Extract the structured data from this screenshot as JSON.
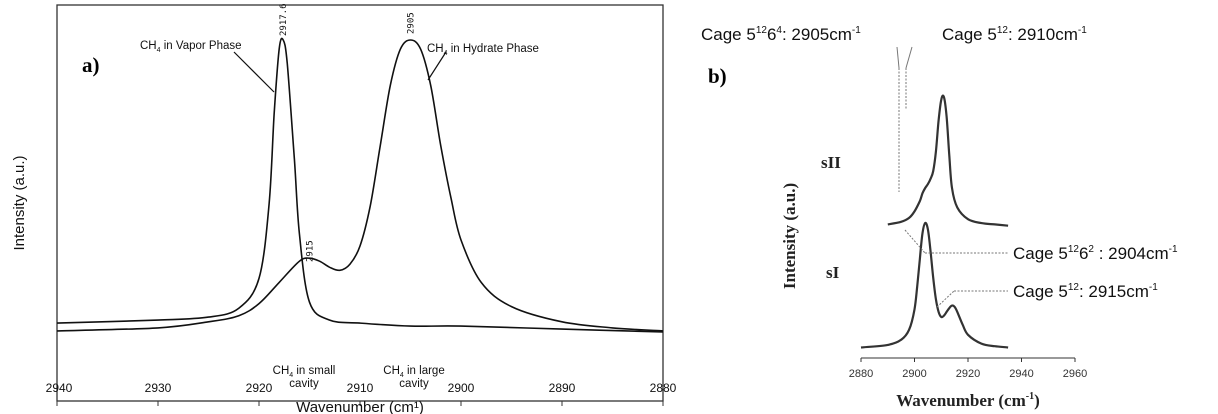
{
  "chart_data": [
    {
      "panel_label": "a)",
      "type": "line",
      "xlabel": "Wavenumber (cm¹)",
      "ylabel": "Intensity (a.u.)",
      "xlim": [
        2940,
        2880
      ],
      "x_reversed": true,
      "x_ticks": [
        "2940",
        "2930",
        "2920",
        "2910",
        "2900",
        "2890",
        "2880"
      ],
      "grid": false,
      "series": [
        {
          "curve": "vapor",
          "x": [
            2940,
            2930,
            2925,
            2922,
            2920,
            2919,
            2918.5,
            2918,
            2917.6,
            2917.2,
            2916.5,
            2916,
            2915,
            2913,
            2910,
            2905,
            2900,
            2890,
            2880
          ],
          "y": [
            0.05,
            0.06,
            0.07,
            0.1,
            0.2,
            0.45,
            0.75,
            0.97,
            1.0,
            0.92,
            0.6,
            0.35,
            0.12,
            0.06,
            0.05,
            0.04,
            0.04,
            0.03,
            0.02
          ]
        },
        {
          "curve": "hydrate",
          "x": [
            2940,
            2930,
            2925,
            2922,
            2920,
            2918,
            2916,
            2915,
            2914,
            2913,
            2912,
            2911,
            2910,
            2909,
            2908,
            2907,
            2906,
            2905,
            2904,
            2903,
            2902,
            2901,
            2900,
            2898,
            2895,
            2890,
            2885,
            2880
          ],
          "y": [
            0.04,
            0.05,
            0.07,
            0.09,
            0.13,
            0.2,
            0.27,
            0.28,
            0.27,
            0.25,
            0.24,
            0.26,
            0.32,
            0.45,
            0.65,
            0.85,
            0.97,
            1.0,
            0.97,
            0.85,
            0.65,
            0.48,
            0.34,
            0.2,
            0.12,
            0.07,
            0.05,
            0.04
          ]
        }
      ],
      "annotations": [
        {
          "x": 2917.6,
          "label": "2917.6"
        },
        {
          "x": 2905,
          "label": "2905"
        },
        {
          "x": 2915,
          "label": "2915"
        }
      ],
      "text": {
        "vapor_ch": "CH",
        "vapor_sub": "4",
        "vapor_rest": " in Vapor Phase",
        "hydrate_ch": "CH",
        "hydrate_sub": "4",
        "hydrate_rest": " in Hydrate Phase",
        "small_ch": "CH",
        "small_sub": "4",
        "small_rest": " in small",
        "small_line2": "cavity",
        "large_ch": "CH",
        "large_sub": "4",
        "large_rest": " in large",
        "large_line2": "cavity",
        "ylabel": "Intensity (a.u.)",
        "xlabel": "Wavenumber (cm¹)"
      }
    },
    {
      "panel_label": "b)",
      "type": "line",
      "xlabel": "Wavenumber (cm-1)",
      "ylabel": "Intensity (a.u.)",
      "xlim": [
        2880,
        2960
      ],
      "x_ticks": [
        "2880",
        "2900",
        "2920",
        "2940",
        "2960"
      ],
      "grid": false,
      "series": [
        {
          "name": "sII",
          "x": [
            2890,
            2895,
            2898,
            2900,
            2902,
            2903,
            2904,
            2905,
            2906,
            2907,
            2908,
            2909,
            2910,
            2911,
            2912,
            2913,
            2914,
            2916,
            2920,
            2925,
            2930,
            2935
          ],
          "y": [
            0.02,
            0.04,
            0.07,
            0.12,
            0.2,
            0.26,
            0.3,
            0.33,
            0.37,
            0.43,
            0.58,
            0.82,
            0.98,
            1.0,
            0.85,
            0.55,
            0.3,
            0.15,
            0.06,
            0.03,
            0.02,
            0.01
          ]
        },
        {
          "name": "sI",
          "x": [
            2880,
            2890,
            2895,
            2898,
            2900,
            2901,
            2902,
            2903,
            2904,
            2905,
            2906,
            2907,
            2908,
            2909,
            2910,
            2911,
            2912,
            2913,
            2914,
            2915,
            2916,
            2918,
            2920,
            2925,
            2930,
            2935
          ],
          "y": [
            0.02,
            0.04,
            0.08,
            0.16,
            0.32,
            0.5,
            0.72,
            0.92,
            1.0,
            0.95,
            0.78,
            0.57,
            0.4,
            0.3,
            0.26,
            0.27,
            0.3,
            0.33,
            0.35,
            0.34,
            0.3,
            0.2,
            0.12,
            0.05,
            0.03,
            0.02
          ]
        }
      ],
      "text": {
        "cage1_prefix": "Cage 5",
        "cage1_sup1": "12",
        "cage1_mid": "6",
        "cage1_sup2": "4",
        "cage1_val": ": 2905cm",
        "cage1_unit_sup": "-1",
        "cage2_prefix": "Cage 5",
        "cage2_sup": "12",
        "cage2_val": ": 2910cm",
        "cage2_unit_sup": "-1",
        "cage3_prefix": "Cage 5",
        "cage3_sup1": "12",
        "cage3_mid": "6",
        "cage3_sup2": "2",
        "cage3_val": " : 2904cm",
        "cage3_unit_sup": "-1",
        "cage4_prefix": "Cage 5",
        "cage4_sup": "12",
        "cage4_val": ": 2915cm",
        "cage4_unit_sup": "-1",
        "ylabel": "Intensity (a.u.)",
        "xlabel_main": "Wavenumber (cm",
        "xlabel_sup": "-1",
        "xlabel_close": ")"
      }
    }
  ]
}
